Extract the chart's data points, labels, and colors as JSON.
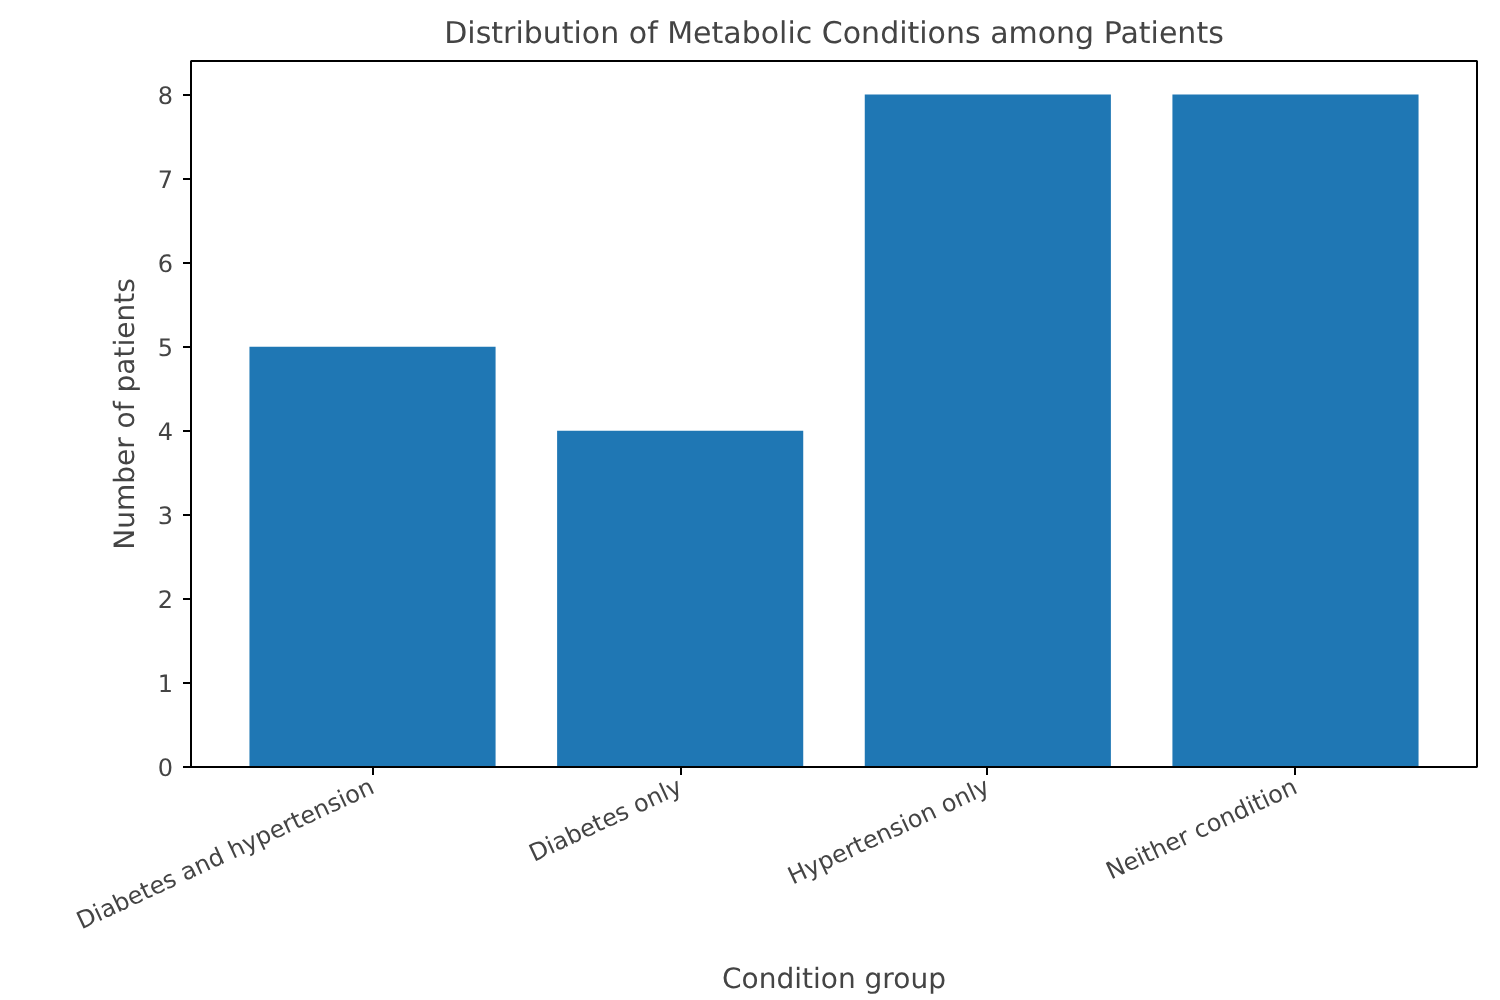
{
  "chart_data": {
    "type": "bar",
    "title": "Distribution of Metabolic Conditions among Patients",
    "xlabel": "Condition group",
    "ylabel": "Number of patients",
    "categories": [
      "Diabetes and hypertension",
      "Diabetes only",
      "Hypertension only",
      "Neither condition"
    ],
    "values": [
      5,
      4,
      8,
      8
    ],
    "color": "#1f77b4",
    "ylim": [
      0,
      8.4
    ],
    "yticks": [
      0,
      1,
      2,
      3,
      4,
      5,
      6,
      7,
      8
    ],
    "grid": false
  }
}
